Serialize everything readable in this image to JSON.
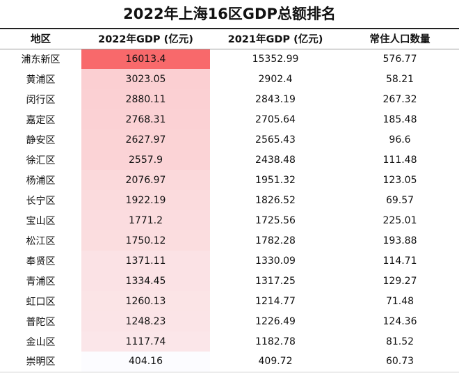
{
  "title": "2022年上海16区GDP总额排名",
  "headers": [
    "地区",
    "2022年GDP (亿元)",
    "2021年GDP (亿元)",
    "常住人口数量"
  ],
  "colors": {
    "bar_max": "#f8696b",
    "bar_min": "#fcfcff"
  },
  "rows": [
    {
      "district": "浦东新区",
      "gdp2022": "16013.4",
      "gdp2021": "15352.99",
      "population": "576.77"
    },
    {
      "district": "黄浦区",
      "gdp2022": "3023.05",
      "gdp2021": "2902.4",
      "population": "58.21"
    },
    {
      "district": "闵行区",
      "gdp2022": "2880.11",
      "gdp2021": "2843.19",
      "population": "267.32"
    },
    {
      "district": "嘉定区",
      "gdp2022": "2768.31",
      "gdp2021": "2705.64",
      "population": "185.48"
    },
    {
      "district": "静安区",
      "gdp2022": "2627.97",
      "gdp2021": "2565.43",
      "population": "96.6"
    },
    {
      "district": "徐汇区",
      "gdp2022": "2557.9",
      "gdp2021": "2438.48",
      "population": "111.48"
    },
    {
      "district": "杨浦区",
      "gdp2022": "2076.97",
      "gdp2021": "1951.32",
      "population": "123.05"
    },
    {
      "district": "长宁区",
      "gdp2022": "1922.19",
      "gdp2021": "1826.52",
      "population": "69.57"
    },
    {
      "district": "宝山区",
      "gdp2022": "1771.2",
      "gdp2021": "1725.56",
      "population": "225.01"
    },
    {
      "district": "松江区",
      "gdp2022": "1750.12",
      "gdp2021": "1782.28",
      "population": "193.88"
    },
    {
      "district": "奉贤区",
      "gdp2022": "1371.11",
      "gdp2021": "1330.09",
      "population": "114.71"
    },
    {
      "district": "青浦区",
      "gdp2022": "1334.45",
      "gdp2021": "1317.25",
      "population": "129.27"
    },
    {
      "district": "虹口区",
      "gdp2022": "1260.13",
      "gdp2021": "1214.77",
      "population": "71.48"
    },
    {
      "district": "普陀区",
      "gdp2022": "1248.23",
      "gdp2021": "1226.49",
      "population": "124.36"
    },
    {
      "district": "金山区",
      "gdp2022": "1117.74",
      "gdp2021": "1182.78",
      "population": "81.52"
    },
    {
      "district": "崇明区",
      "gdp2022": "404.16",
      "gdp2021": "409.72",
      "population": "60.73"
    }
  ]
}
